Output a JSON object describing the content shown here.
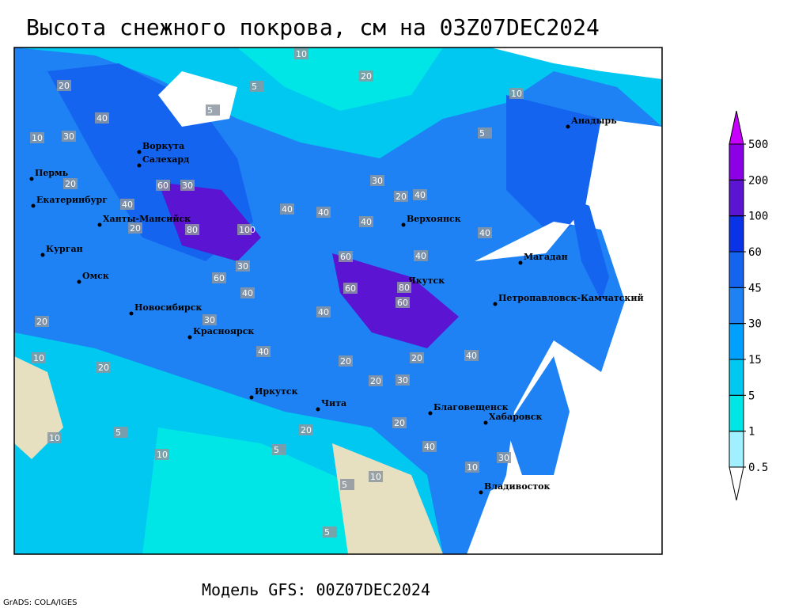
{
  "header": {
    "title": "Высота снежного покрова, см на 03Z07DEC2024"
  },
  "map": {
    "cities": [
      "Анадырь",
      "Воркута",
      "Салехард",
      "Пермь",
      "Екатеринбург",
      "Ханты-Мансийск",
      "Курган",
      "Омск",
      "Верхоянск",
      "Магадан",
      "Якутск",
      "Петропавловск-Камчатский",
      "Новосибирск",
      "Красноярск",
      "Иркутск",
      "Чита",
      "Благовещенск",
      "Хабаровск",
      "Владивосток"
    ],
    "contour_labels": [
      10,
      20,
      30,
      20,
      5,
      10,
      5,
      40,
      20,
      40,
      30,
      60,
      80,
      100,
      40,
      40,
      40,
      60,
      30,
      40,
      60,
      60,
      80,
      40,
      60,
      40,
      40,
      20,
      20,
      10,
      20,
      30,
      20,
      40,
      20,
      30,
      20,
      10,
      5,
      10,
      20,
      5,
      10,
      5,
      30,
      40,
      10,
      5,
      20,
      20,
      30,
      40,
      40,
      10,
      5
    ]
  },
  "legend": {
    "levels": [
      0.5,
      1,
      5,
      15,
      30,
      45,
      60,
      100,
      200,
      500
    ],
    "colors": [
      "#ffffff",
      "#a0f0ff",
      "#00e6e6",
      "#00c8f0",
      "#00a0ff",
      "#1e82f5",
      "#1464f0",
      "#0a32e6",
      "#5a14d2",
      "#8c00e6",
      "#c800ff"
    ]
  },
  "footer": {
    "model": "Модель GFS: 00Z07DEC2024",
    "credit": "GrADS: COLA/IGES"
  }
}
